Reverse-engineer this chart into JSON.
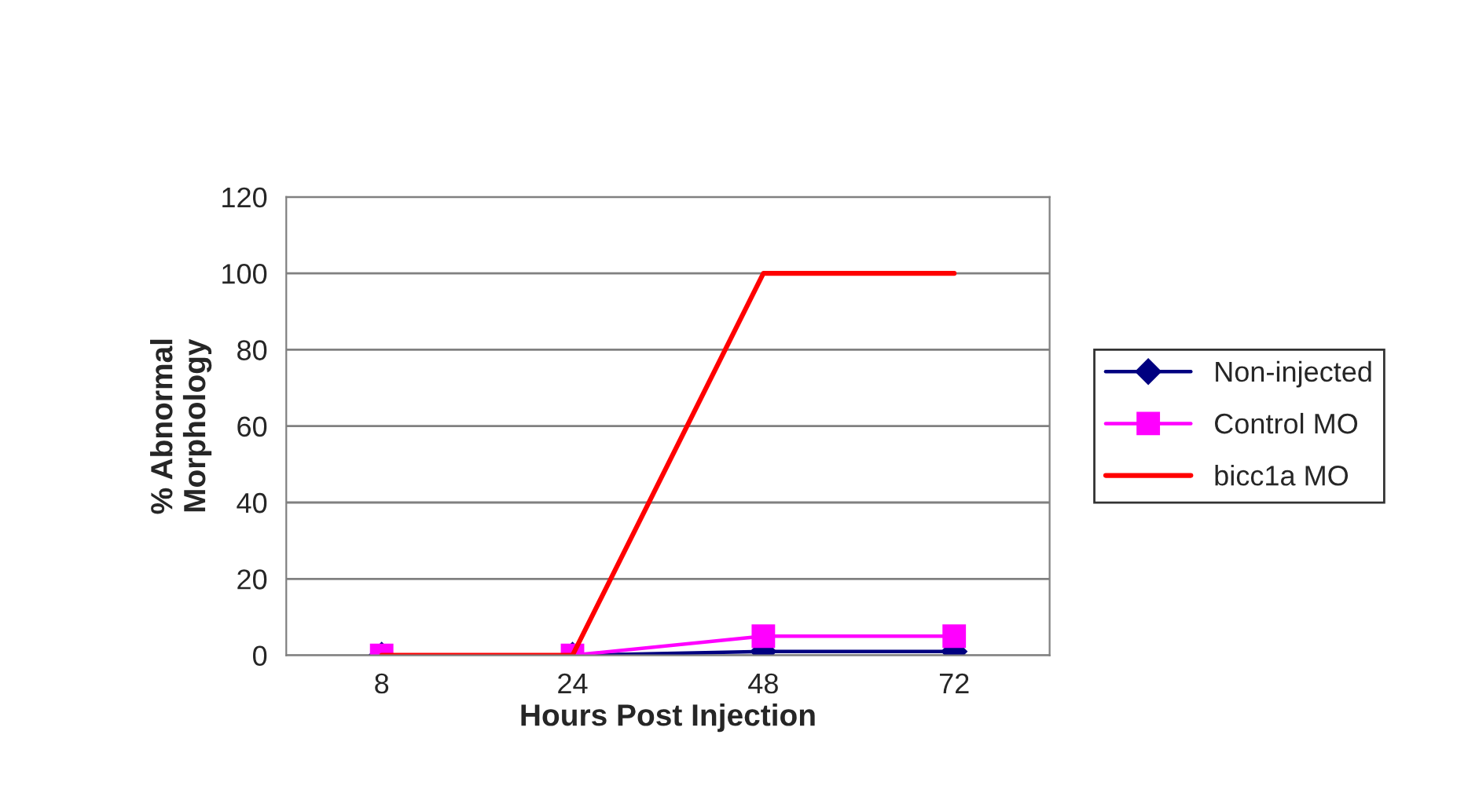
{
  "chart_data": {
    "type": "line",
    "xlabel": "Hours Post Injection",
    "ylabel": "% Abnormal\nMorphology",
    "categories": [
      "8",
      "24",
      "48",
      "72"
    ],
    "series": [
      {
        "name": "Non-injected",
        "color": "#000080",
        "marker": "diamond",
        "values": [
          0,
          0,
          1,
          1
        ]
      },
      {
        "name": "Control MO",
        "color": "#ff00ff",
        "marker": "square",
        "values": [
          0,
          0,
          5,
          5
        ]
      },
      {
        "name": "bicc1a MO",
        "color": "#ff0000",
        "marker": "none",
        "values": [
          0,
          0,
          100,
          100
        ]
      }
    ],
    "ylim": [
      0,
      120
    ],
    "yticks": [
      0,
      20,
      40,
      60,
      80,
      100,
      120
    ],
    "grid": "y",
    "legend": "right"
  }
}
